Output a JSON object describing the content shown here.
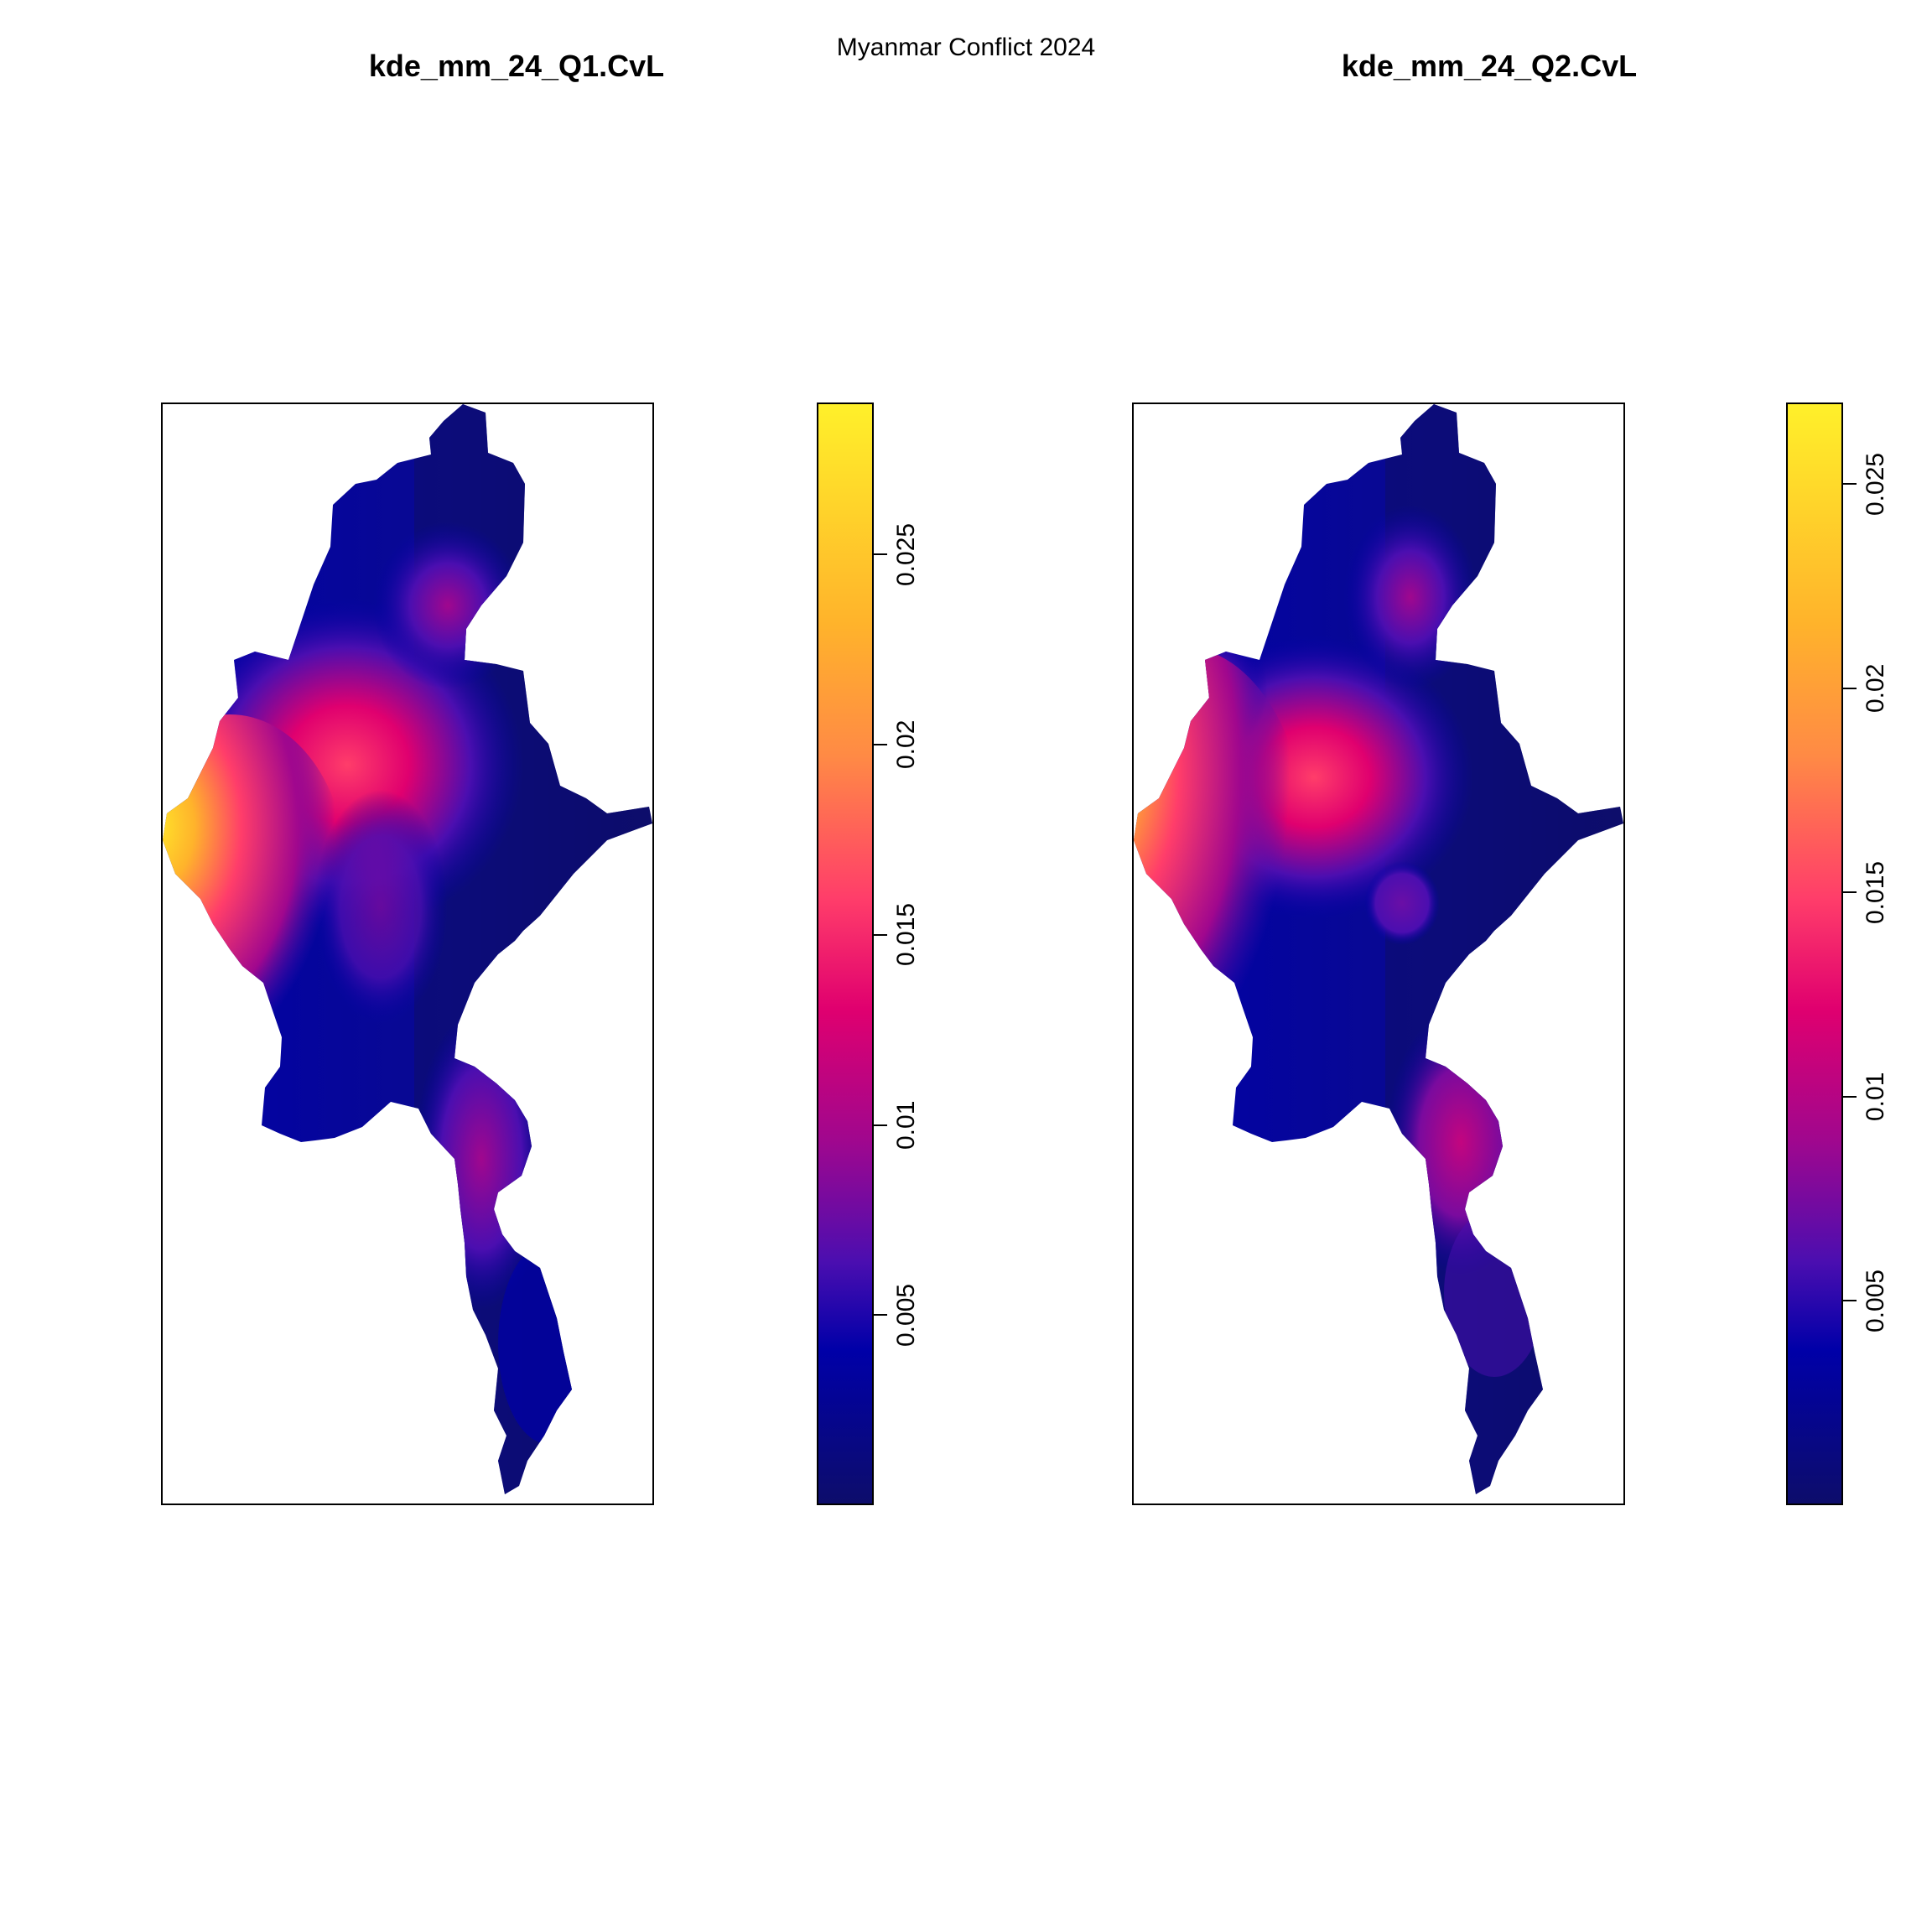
{
  "page_title": "Myanmar Conflict 2024",
  "colors": {
    "background": "#ffffff",
    "frame": "#000000",
    "palette": [
      "#0d0d6b",
      "#0000a8",
      "#4b0eb0",
      "#a0078e",
      "#e0006f",
      "#ff3d6a",
      "#ff8a45",
      "#ffb32b",
      "#fff02a"
    ]
  },
  "panels": [
    {
      "title": "kde_mm_24_Q1.CvL",
      "legend": {
        "min": 0.0,
        "max": 0.029,
        "ticks": [
          {
            "value": 0.005,
            "label": "0.005"
          },
          {
            "value": 0.01,
            "label": "0.01"
          },
          {
            "value": 0.015,
            "label": "0.015"
          },
          {
            "value": 0.02,
            "label": "0.02"
          },
          {
            "value": 0.025,
            "label": "0.025"
          }
        ]
      },
      "hotspots": [
        {
          "name": "central",
          "value": 0.017
        },
        {
          "name": "west-coast",
          "value": 0.028
        },
        {
          "name": "south",
          "value": 0.008
        }
      ]
    },
    {
      "title": "kde_mm_24_Q2.CvL",
      "legend": {
        "min": 0.0,
        "max": 0.027,
        "ticks": [
          {
            "value": 0.005,
            "label": "0.005"
          },
          {
            "value": 0.01,
            "label": "0.01"
          },
          {
            "value": 0.015,
            "label": "0.015"
          },
          {
            "value": 0.02,
            "label": "0.02"
          },
          {
            "value": 0.025,
            "label": "0.025"
          }
        ]
      },
      "hotspots": [
        {
          "name": "central",
          "value": 0.016
        },
        {
          "name": "west-coast",
          "value": 0.026
        },
        {
          "name": "south",
          "value": 0.01
        }
      ]
    }
  ]
}
